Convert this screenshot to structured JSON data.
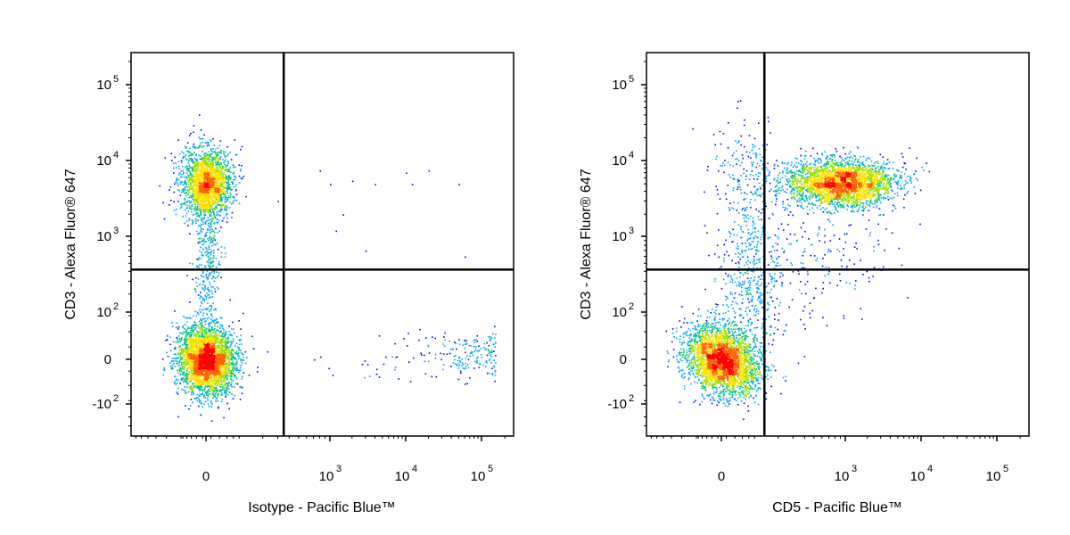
{
  "chart_data": [
    {
      "type": "scatter",
      "subtype": "flow cytometry density pseudocolor plot",
      "xlabel": "Isotype - Pacific Blue™",
      "ylabel": "CD3 - Alexa Fluor® 647",
      "x_scale": "biexponential",
      "y_scale": "biexponential",
      "x_ticks": [
        {
          "value": 0,
          "base": "0",
          "exp": ""
        },
        {
          "value": 1000,
          "base": "10",
          "exp": "3"
        },
        {
          "value": 10000,
          "base": "10",
          "exp": "4"
        },
        {
          "value": 100000,
          "base": "10",
          "exp": "5"
        }
      ],
      "y_ticks": [
        {
          "value": 100000,
          "base": "10",
          "exp": "5"
        },
        {
          "value": 10000,
          "base": "10",
          "exp": "4"
        },
        {
          "value": 1000,
          "base": "10",
          "exp": "3"
        },
        {
          "value": 100,
          "base": "10",
          "exp": "2"
        },
        {
          "value": 0,
          "base": "0",
          "exp": ""
        },
        {
          "value": -100,
          "base": "-10",
          "exp": "2"
        }
      ],
      "gate": {
        "x": 350,
        "y": 420
      },
      "populations": [
        {
          "name": "CD3-positive",
          "x_center": 0,
          "y_center": 5200,
          "approx_events": 2200
        },
        {
          "name": "CD3-negative",
          "x_center": 0,
          "y_center": 0,
          "approx_events": 3600
        },
        {
          "name": "sparse Isotype-positive events",
          "x_range": [
            350,
            150000
          ],
          "y_center": 0,
          "approx_events": 220
        }
      ],
      "grid": false,
      "legend": "none"
    },
    {
      "type": "scatter",
      "subtype": "flow cytometry density pseudocolor plot",
      "xlabel": "CD5 - Pacific Blue™",
      "ylabel": "CD3 - Alexa Fluor® 647",
      "x_scale": "biexponential",
      "y_scale": "biexponential",
      "x_ticks": [
        {
          "value": 0,
          "base": "0",
          "exp": ""
        },
        {
          "value": 1000,
          "base": "10",
          "exp": "3"
        },
        {
          "value": 10000,
          "base": "10",
          "exp": "4"
        },
        {
          "value": 100000,
          "base": "10",
          "exp": "5"
        }
      ],
      "y_ticks": [
        {
          "value": 100000,
          "base": "10",
          "exp": "5"
        },
        {
          "value": 10000,
          "base": "10",
          "exp": "4"
        },
        {
          "value": 1000,
          "base": "10",
          "exp": "3"
        },
        {
          "value": 100,
          "base": "10",
          "exp": "2"
        },
        {
          "value": 0,
          "base": "0",
          "exp": ""
        },
        {
          "value": -100,
          "base": "-10",
          "exp": "2"
        }
      ],
      "gate": {
        "x": 130,
        "y": 420
      },
      "populations": [
        {
          "name": "CD5+ CD3+",
          "x_center": 900,
          "y_center": 5200,
          "approx_events": 3000
        },
        {
          "name": "CD5- CD3-",
          "x_center": 0,
          "y_center": 0,
          "approx_events": 3200
        }
      ],
      "grid": false,
      "legend": "none"
    }
  ],
  "colors": {
    "density_scale": [
      "#0000ff",
      "#00a0ff",
      "#00c080",
      "#a0e000",
      "#ffe000",
      "#ff6000",
      "#ff0000"
    ],
    "axis": "#000000"
  }
}
